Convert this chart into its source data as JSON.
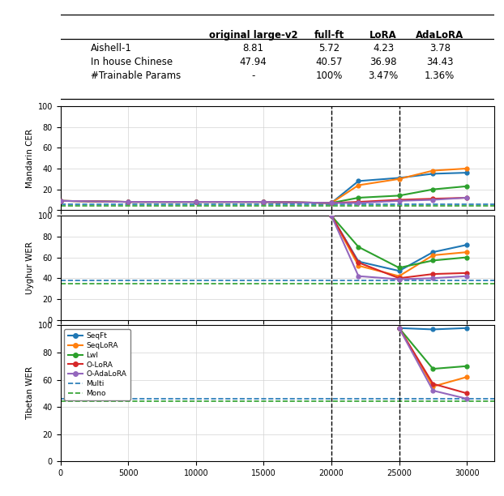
{
  "table": {
    "columns": [
      "",
      "original large-v2",
      "full-ft",
      "LoRA",
      "AdaLoRA"
    ],
    "rows": [
      [
        "Aishell-1",
        "8.81",
        "5.72",
        "4.23",
        "3.78"
      ],
      [
        "In house Chinese",
        "47.94",
        "40.57",
        "36.98",
        "34.43"
      ],
      [
        "#Trainable Params",
        "-",
        "100%",
        "3.47%",
        "1.36%"
      ]
    ]
  },
  "x_ticks": [
    0,
    5000,
    10000,
    15000,
    20000,
    25000,
    30000
  ],
  "x_lim": [
    0,
    32000
  ],
  "vlines": [
    20000,
    25000
  ],
  "mandarin_CER": {
    "ylabel": "Mandarin CER",
    "ylim": [
      0,
      100
    ],
    "yticks": [
      0,
      20,
      40,
      60,
      80,
      100
    ],
    "SeqFt": {
      "x": [
        0,
        5000,
        10000,
        15000,
        20000,
        22000,
        25000,
        27500,
        30000
      ],
      "y": [
        9,
        8,
        8,
        8,
        7,
        28,
        31,
        35,
        36
      ]
    },
    "SeqLoRA": {
      "x": [
        0,
        5000,
        10000,
        15000,
        20000,
        22000,
        25000,
        27500,
        30000
      ],
      "y": [
        9,
        8,
        8,
        8,
        7,
        24,
        30,
        38,
        40
      ]
    },
    "LwI": {
      "x": [
        0,
        5000,
        10000,
        15000,
        20000,
        22000,
        25000,
        27500,
        30000
      ],
      "y": [
        9,
        8,
        8,
        8,
        7,
        12,
        14,
        20,
        23
      ]
    },
    "O-LoRA": {
      "x": [
        0,
        5000,
        10000,
        15000,
        20000,
        22000,
        25000,
        27500,
        30000
      ],
      "y": [
        9,
        8,
        8,
        8,
        7,
        8,
        10,
        11,
        12
      ]
    },
    "O-AdaLoRA": {
      "x": [
        0,
        5000,
        10000,
        15000,
        20000,
        22000,
        25000,
        27500,
        30000
      ],
      "y": [
        9,
        8,
        8,
        8,
        7,
        7,
        9,
        10,
        12
      ]
    },
    "Multi_y": 6,
    "Mono_y": 4
  },
  "uyghur_WER": {
    "ylabel": "Uyghur WER",
    "ylim": [
      0,
      100
    ],
    "yticks": [
      0,
      20,
      40,
      60,
      80,
      100
    ],
    "SeqFt": {
      "x": [
        20000,
        22000,
        25000,
        27500,
        30000
      ],
      "y": [
        100,
        56,
        47,
        65,
        72
      ]
    },
    "SeqLoRA": {
      "x": [
        20000,
        22000,
        25000,
        27500,
        30000
      ],
      "y": [
        100,
        52,
        42,
        62,
        65
      ]
    },
    "LwI": {
      "x": [
        20000,
        22000,
        25000,
        27500,
        30000
      ],
      "y": [
        100,
        70,
        50,
        57,
        60
      ]
    },
    "O-LoRA": {
      "x": [
        20000,
        22000,
        25000,
        27500,
        30000
      ],
      "y": [
        100,
        55,
        40,
        44,
        45
      ]
    },
    "O-AdaLoRA": {
      "x": [
        20000,
        22000,
        25000,
        27500,
        30000
      ],
      "y": [
        100,
        42,
        39,
        40,
        42
      ]
    },
    "Multi_y": 38,
    "Mono_y": 35
  },
  "tibetan_WER": {
    "ylabel": "Tibetan WER",
    "ylim": [
      0,
      100
    ],
    "yticks": [
      0,
      20,
      40,
      60,
      80,
      100
    ],
    "SeqFt": {
      "x": [
        25000,
        27500,
        30000
      ],
      "y": [
        98,
        97,
        98
      ]
    },
    "SeqLoRA": {
      "x": [
        25000,
        27500,
        30000
      ],
      "y": [
        98,
        55,
        62
      ]
    },
    "LwI": {
      "x": [
        25000,
        27500,
        30000
      ],
      "y": [
        98,
        68,
        70
      ]
    },
    "O-LoRA": {
      "x": [
        25000,
        27500,
        30000
      ],
      "y": [
        98,
        57,
        50
      ]
    },
    "O-AdaLoRA": {
      "x": [
        25000,
        27500,
        30000
      ],
      "y": [
        98,
        52,
        46
      ]
    },
    "Multi_y": 46,
    "Mono_y": 44
  },
  "series_colors": {
    "SeqFt": "#1f77b4",
    "SeqLoRA": "#ff7f0e",
    "LwI": "#2ca02c",
    "O-LoRA": "#d62728",
    "O-AdaLoRA": "#9467bd"
  },
  "multi_color": "#1f77b4",
  "mono_color": "#2ca02c",
  "legend_entries": [
    "SeqFt",
    "SeqLoRA",
    "LwI",
    "O-LoRA",
    "O-AdaLoRA",
    "Multi",
    "Mono"
  ],
  "legend_colors": [
    "#1f77b4",
    "#ff7f0e",
    "#2ca02c",
    "#d62728",
    "#9467bd",
    "#1f77b4",
    "#2ca02c"
  ],
  "legend_styles": [
    "solid",
    "solid",
    "solid",
    "solid",
    "solid",
    "--",
    "--"
  ]
}
